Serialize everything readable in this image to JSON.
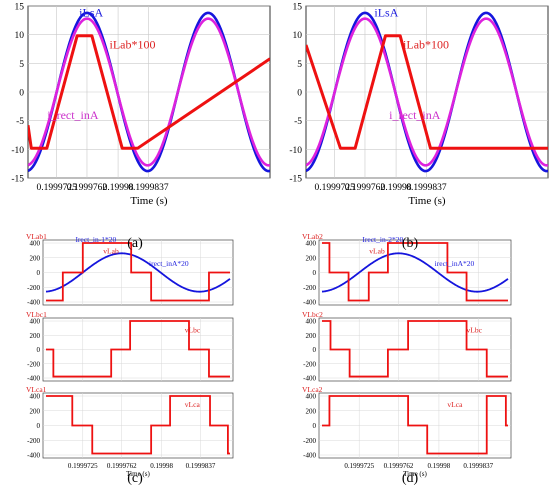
{
  "captions": [
    "(a)",
    "(b)",
    "(c)",
    "(d)"
  ],
  "chart_data": [
    {
      "id": "a",
      "type": "line",
      "xlabel": "Time (s)",
      "xlim": [
        0.199969,
        0.19999855
      ],
      "ylim": [
        -15,
        15
      ],
      "yticks": [
        -15,
        -10,
        -5,
        0,
        5,
        10,
        15
      ],
      "xticks": [
        {
          "v": 0.1999725,
          "label": "0.1999725"
        },
        {
          "v": 0.1999762,
          "label": "0.1999762"
        },
        {
          "v": 0.19998,
          "label": "0.19998"
        },
        {
          "v": 0.1999837,
          "label": "0.1999837"
        }
      ],
      "grid": true,
      "annotations": [
        {
          "text": "iLsA",
          "color": "#2222dd",
          "x": 0.19997525,
          "y": 13.2
        },
        {
          "text": "iLab*100",
          "color": "#dd2222",
          "x": 0.19997895,
          "y": 7.6
        },
        {
          "text": "i_rect_inA",
          "color": "#cc33cc",
          "x": 0.19997135,
          "y": -4.7
        }
      ],
      "series": [
        {
          "label": "iLsA",
          "color": "#1515dd",
          "width": 2.6,
          "kind": "sine",
          "amp": 13.8,
          "center": 0.1999762,
          "period": 1.48e-05
        },
        {
          "label": "i_rect_inA",
          "color": "#dd22dd",
          "width": 2.6,
          "kind": "sine",
          "amp": 12.8,
          "center": 0.1999762,
          "period": 1.48e-05
        },
        {
          "label": "iLab*100",
          "color": "#ee1111",
          "width": 3,
          "kind": "points",
          "points": [
            [
              0.199969,
              -5.8
            ],
            [
              0.1999694,
              -9.8
            ],
            [
              0.1999713,
              -9.8
            ],
            [
              0.199975,
              9.8
            ],
            [
              0.1999768,
              9.8
            ],
            [
              0.1999805,
              -9.8
            ],
            [
              0.1999824,
              -9.8
            ],
            [
              0.19999855,
              5.8
            ]
          ]
        }
      ]
    },
    {
      "id": "b",
      "type": "line",
      "xlabel": "Time (s)",
      "xlim": [
        0.199969,
        0.19999855
      ],
      "ylim": [
        -15,
        15
      ],
      "yticks": [
        -15,
        -10,
        -5,
        0,
        5,
        10,
        15
      ],
      "xticks": [
        {
          "v": 0.1999725,
          "label": "0.1999725"
        },
        {
          "v": 0.1999762,
          "label": "0.1999762"
        },
        {
          "v": 0.19998,
          "label": "0.19998"
        },
        {
          "v": 0.1999837,
          "label": "0.1999837"
        }
      ],
      "grid": true,
      "annotations": [
        {
          "text": "iLsA",
          "color": "#2222dd",
          "x": 0.19997735,
          "y": 13.2
        },
        {
          "text": "iLab*100",
          "color": "#dd2222",
          "x": 0.19998085,
          "y": 7.6
        },
        {
          "text": "i_rect_inA",
          "color": "#cc33cc",
          "x": 0.19997915,
          "y": -4.7
        }
      ],
      "series": [
        {
          "label": "iLsA",
          "color": "#1515dd",
          "width": 2.6,
          "kind": "sine",
          "amp": 13.8,
          "center": 0.1999762,
          "period": 1.48e-05
        },
        {
          "label": "i_rect_inA",
          "color": "#dd22dd",
          "width": 2.6,
          "kind": "sine",
          "amp": 12.8,
          "center": 0.1999762,
          "period": 1.48e-05
        },
        {
          "label": "iLab*100",
          "color": "#ee1111",
          "width": 3,
          "kind": "points",
          "points": [
            [
              0.199969,
              8.2
            ],
            [
              0.1999732,
              -9.8
            ],
            [
              0.199975,
              -9.8
            ],
            [
              0.1999787,
              9.8
            ],
            [
              0.1999805,
              9.8
            ],
            [
              0.1999842,
              -9.8
            ],
            [
              0.19999855,
              -9.8
            ]
          ]
        }
      ]
    },
    {
      "id": "c",
      "type": "line",
      "xlabel": "Time (s)",
      "xlim": [
        0.199969,
        0.1999865
      ],
      "xticks": [
        {
          "v": 0.1999725,
          "label": "0.1999725"
        },
        {
          "v": 0.1999762,
          "label": "0.1999762"
        },
        {
          "v": 0.19998,
          "label": "0.19998"
        },
        {
          "v": 0.1999837,
          "label": "0.1999837"
        }
      ],
      "panels": [
        {
          "title": "VLab1",
          "ylim": [
            -400,
            400
          ],
          "yticks": [
            -400,
            -200,
            0,
            200,
            400
          ],
          "annotations": [
            {
              "text": "Irect_in-1*20",
              "color": "#2222dd",
              "x": 0.1999718,
              "y": 415
            },
            {
              "text": "vLab",
              "color": "#dd2222",
              "x": 0.19997445,
              "y": 255
            },
            {
              "text": "irect_inA*20",
              "color": "#2222dd",
              "x": 0.1999788,
              "y": 85
            }
          ],
          "series": [
            {
              "label": "Irect_in-1*20",
              "color": "#1515dd",
              "width": 1.8,
              "kind": "sine",
              "amp": 260,
              "center": 0.1999762,
              "period": 1.48e-05
            },
            {
              "label": "vLab",
              "color": "#ee1111",
              "width": 1.8,
              "kind": "points",
              "points": [
                [
                  0.199969,
                  -380
                ],
                [
                  0.1999706,
                  -380
                ],
                [
                  0.1999706,
                  0
                ],
                [
                  0.1999725,
                  0
                ],
                [
                  0.1999725,
                  400
                ],
                [
                  0.1999771,
                  400
                ],
                [
                  0.1999771,
                  0
                ],
                [
                  0.199979,
                  0
                ],
                [
                  0.199979,
                  -380
                ],
                [
                  0.1999845,
                  -380
                ],
                [
                  0.1999845,
                  0
                ],
                [
                  0.1999865,
                  0
                ]
              ]
            }
          ]
        },
        {
          "title": "VLbc1",
          "ylim": [
            -400,
            400
          ],
          "yticks": [
            -400,
            -200,
            0,
            200,
            400
          ],
          "annotations": [
            {
              "text": "vLbc",
              "color": "#dd2222",
              "x": 0.1999822,
              "y": 240
            }
          ],
          "series": [
            {
              "label": "vLbc",
              "color": "#ee1111",
              "width": 1.8,
              "kind": "points",
              "points": [
                [
                  0.199969,
                  0
                ],
                [
                  0.1999697,
                  0
                ],
                [
                  0.1999697,
                  -380
                ],
                [
                  0.1999752,
                  -380
                ],
                [
                  0.1999752,
                  0
                ],
                [
                  0.199977,
                  0
                ],
                [
                  0.199977,
                  400
                ],
                [
                  0.1999826,
                  400
                ],
                [
                  0.1999826,
                  0
                ],
                [
                  0.1999845,
                  0
                ],
                [
                  0.1999845,
                  -380
                ],
                [
                  0.1999865,
                  -380
                ]
              ]
            }
          ]
        },
        {
          "title": "VLca1",
          "ylim": [
            -400,
            400
          ],
          "yticks": [
            -400,
            -200,
            0,
            200,
            400
          ],
          "annotations": [
            {
              "text": "vLca",
              "color": "#dd2222",
              "x": 0.1999822,
              "y": 250
            }
          ],
          "series": [
            {
              "label": "vLca",
              "color": "#ee1111",
              "width": 1.8,
              "kind": "points",
              "points": [
                [
                  0.199969,
                  400
                ],
                [
                  0.1999715,
                  400
                ],
                [
                  0.1999715,
                  0
                ],
                [
                  0.1999734,
                  0
                ],
                [
                  0.1999734,
                  -380
                ],
                [
                  0.199979,
                  -380
                ],
                [
                  0.199979,
                  0
                ],
                [
                  0.1999808,
                  0
                ],
                [
                  0.1999808,
                  400
                ],
                [
                  0.1999846,
                  400
                ],
                [
                  0.1999846,
                  0
                ],
                [
                  0.1999863,
                  0
                ],
                [
                  0.1999863,
                  -380
                ],
                [
                  0.1999865,
                  -380
                ]
              ]
            }
          ]
        }
      ]
    },
    {
      "id": "d",
      "type": "line",
      "xlabel": "Time (s)",
      "xlim": [
        0.199969,
        0.1999865
      ],
      "xticks": [
        {
          "v": 0.1999725,
          "label": "0.1999725"
        },
        {
          "v": 0.1999762,
          "label": "0.1999762"
        },
        {
          "v": 0.19998,
          "label": "0.19998"
        },
        {
          "v": 0.1999837,
          "label": "0.1999837"
        }
      ],
      "panels": [
        {
          "title": "VLab2",
          "ylim": [
            -400,
            400
          ],
          "yticks": [
            -400,
            -200,
            0,
            200,
            400
          ],
          "annotations": [
            {
              "text": "Irect_in-2*20",
              "color": "#2222dd",
              "x": 0.1999728,
              "y": 415
            },
            {
              "text": "vLab",
              "color": "#dd2222",
              "x": 0.19997345,
              "y": 255
            },
            {
              "text": "irect_inA*20",
              "color": "#2222dd",
              "x": 0.1999796,
              "y": 85
            }
          ],
          "series": [
            {
              "label": "Irect_in-2*20",
              "color": "#1515dd",
              "width": 1.8,
              "kind": "sine",
              "amp": 260,
              "center": 0.1999762,
              "period": 1.48e-05
            },
            {
              "label": "vLab",
              "color": "#ee1111",
              "width": 1.8,
              "kind": "points",
              "points": [
                [
                  0.199969,
                  400
                ],
                [
                  0.1999697,
                  400
                ],
                [
                  0.1999697,
                  0
                ],
                [
                  0.1999715,
                  0
                ],
                [
                  0.1999715,
                  -380
                ],
                [
                  0.1999734,
                  -380
                ],
                [
                  0.1999734,
                  0
                ],
                [
                  0.1999752,
                  0
                ],
                [
                  0.1999752,
                  400
                ],
                [
                  0.1999808,
                  400
                ],
                [
                  0.1999808,
                  0
                ],
                [
                  0.1999826,
                  0
                ],
                [
                  0.1999826,
                  -380
                ],
                [
                  0.1999865,
                  -380
                ]
              ]
            }
          ]
        },
        {
          "title": "VLbc2",
          "ylim": [
            -400,
            400
          ],
          "yticks": [
            -400,
            -200,
            0,
            200,
            400
          ],
          "annotations": [
            {
              "text": "vLbc",
              "color": "#dd2222",
              "x": 0.1999826,
              "y": 240
            }
          ],
          "series": [
            {
              "label": "vLbc",
              "color": "#ee1111",
              "width": 1.8,
              "kind": "points",
              "points": [
                [
                  0.199969,
                  400
                ],
                [
                  0.1999698,
                  400
                ],
                [
                  0.1999698,
                  0
                ],
                [
                  0.1999716,
                  0
                ],
                [
                  0.1999716,
                  -380
                ],
                [
                  0.1999752,
                  -380
                ],
                [
                  0.1999752,
                  0
                ],
                [
                  0.1999771,
                  0
                ],
                [
                  0.1999771,
                  400
                ],
                [
                  0.1999826,
                  400
                ],
                [
                  0.1999826,
                  0
                ],
                [
                  0.1999845,
                  0
                ],
                [
                  0.1999845,
                  -380
                ],
                [
                  0.1999865,
                  -380
                ]
              ]
            }
          ]
        },
        {
          "title": "VLca2",
          "ylim": [
            -400,
            400
          ],
          "yticks": [
            -400,
            -200,
            0,
            200,
            400
          ],
          "annotations": [
            {
              "text": "vLca",
              "color": "#dd2222",
              "x": 0.1999808,
              "y": 250
            }
          ],
          "series": [
            {
              "label": "vLca",
              "color": "#ee1111",
              "width": 1.8,
              "kind": "points",
              "points": [
                [
                  0.199969,
                  0
                ],
                [
                  0.1999697,
                  0
                ],
                [
                  0.1999697,
                  400
                ],
                [
                  0.1999771,
                  400
                ],
                [
                  0.1999771,
                  0
                ],
                [
                  0.1999789,
                  0
                ],
                [
                  0.1999789,
                  -380
                ],
                [
                  0.1999845,
                  -380
                ],
                [
                  0.1999845,
                  400
                ],
                [
                  0.1999863,
                  400
                ],
                [
                  0.1999863,
                  0
                ],
                [
                  0.1999865,
                  0
                ]
              ]
            }
          ]
        }
      ]
    }
  ]
}
